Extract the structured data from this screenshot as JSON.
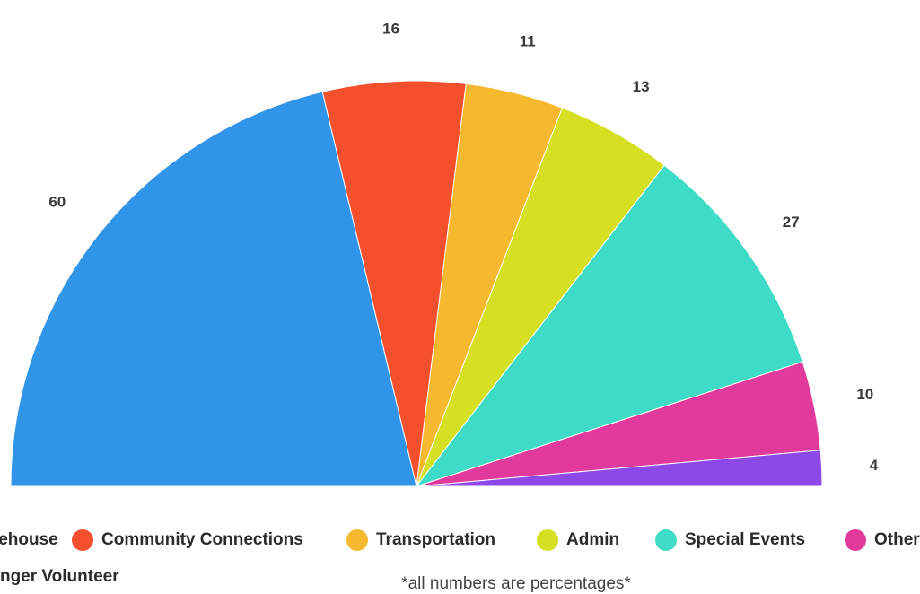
{
  "chart_data": {
    "type": "pie",
    "variant": "semicircle",
    "series": [
      {
        "name": "Warehouse",
        "value": 60,
        "color": "#3094E8"
      },
      {
        "name": "Community Connections",
        "value": 16,
        "color": "#F5502D"
      },
      {
        "name": "Transportation",
        "value": 11,
        "color": "#F5B82E"
      },
      {
        "name": "Admin",
        "value": 13,
        "color": "#D6DF22"
      },
      {
        "name": "Special Events",
        "value": 27,
        "color": "#3EDBC6"
      },
      {
        "name": "Other",
        "value": 10,
        "color": "#E23A9C"
      },
      {
        "name": "Stranger Volunteer",
        "value": 4,
        "color": "#8D49E8"
      }
    ],
    "legend_position": "bottom"
  },
  "footnote": "*all numbers are percentages*"
}
